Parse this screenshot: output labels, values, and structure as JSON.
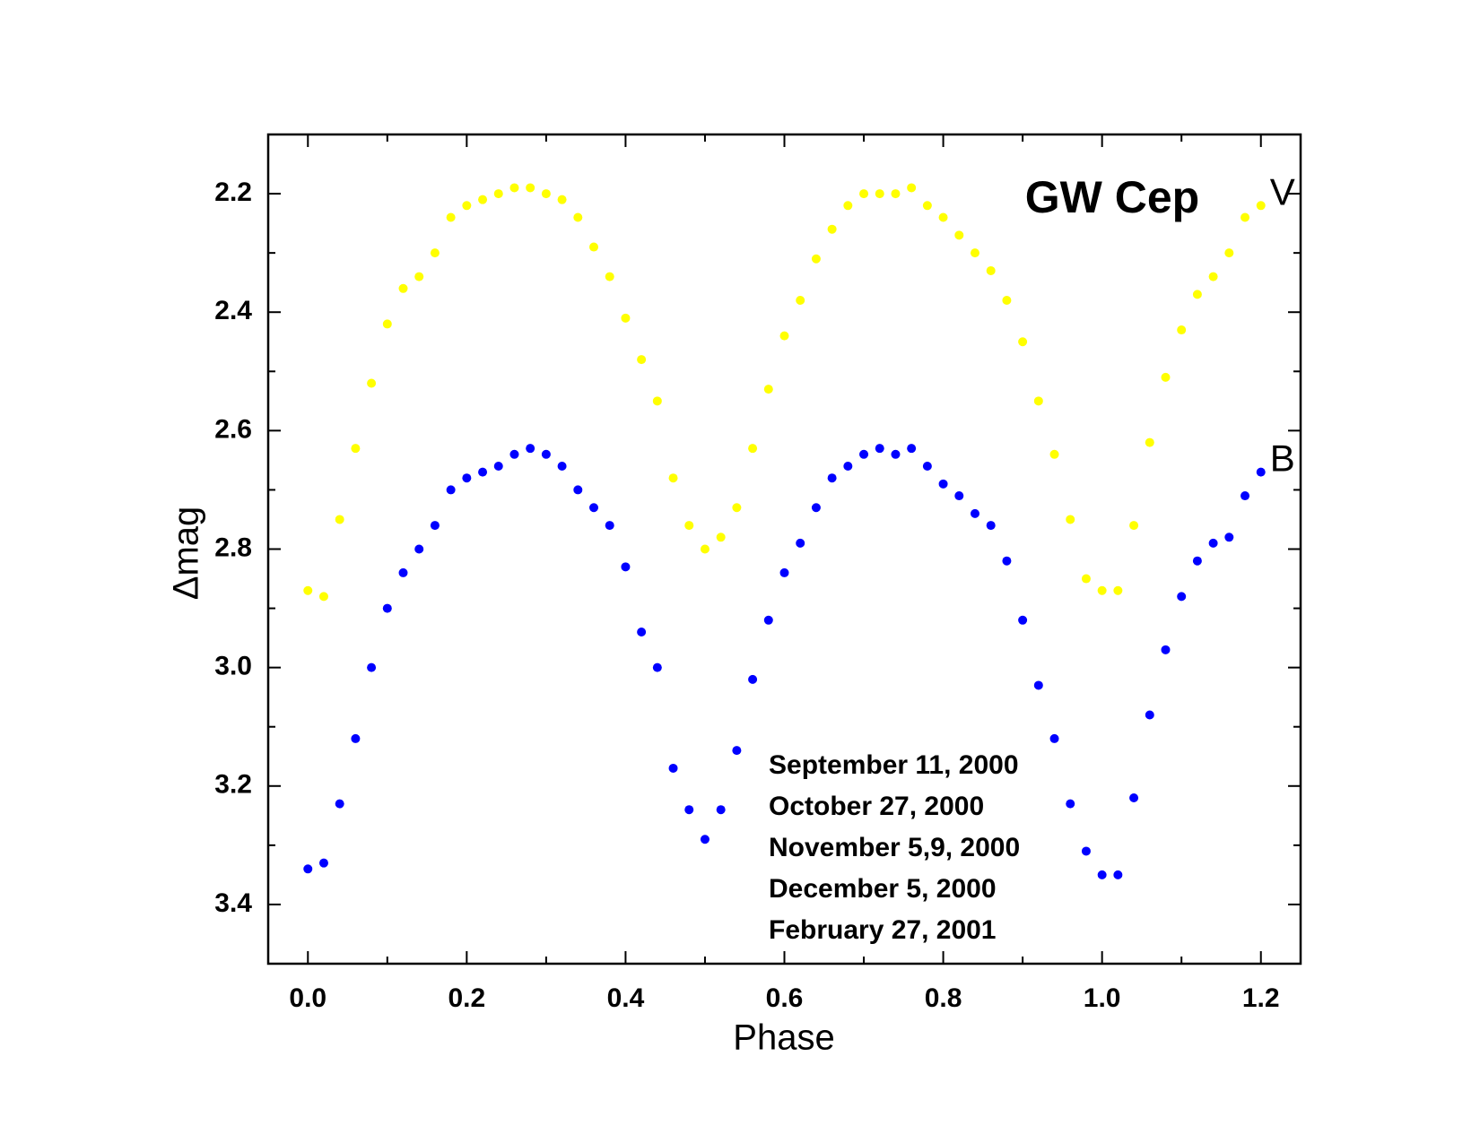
{
  "chart_data": {
    "type": "scatter",
    "title": "GW Cep",
    "x_label": "Phase",
    "y_label": "Δmag",
    "annotations": [
      "September 11, 2000",
      "October 27, 2000",
      "November 5,9, 2000",
      "December 5, 2000",
      "February 27, 2001"
    ],
    "x": [
      0,
      0.02,
      0.04,
      0.06,
      0.08,
      0.1,
      0.12,
      0.14,
      0.16,
      0.18,
      0.2,
      0.22,
      0.24,
      0.26,
      0.28,
      0.3,
      0.32,
      0.34,
      0.36,
      0.38,
      0.4,
      0.42,
      0.44,
      0.46,
      0.48,
      0.5,
      0.52,
      0.54,
      0.56,
      0.58,
      0.6,
      0.62,
      0.64,
      0.66,
      0.68,
      0.7,
      0.72,
      0.74,
      0.76,
      0.78,
      0.8,
      0.82,
      0.84,
      0.86,
      0.88,
      0.9,
      0.92,
      0.94,
      0.96,
      0.98,
      1,
      1.02,
      1.04,
      1.06,
      1.08,
      1.1,
      1.12,
      1.14,
      1.16,
      1.18,
      1.2
    ],
    "series": [
      {
        "name": "V",
        "color": "#ffff00",
        "values": [
          2.87,
          2.88,
          2.75,
          2.63,
          2.52,
          2.42,
          2.36,
          2.34,
          2.3,
          2.24,
          2.22,
          2.21,
          2.2,
          2.19,
          2.19,
          2.2,
          2.21,
          2.24,
          2.29,
          2.34,
          2.41,
          2.48,
          2.55,
          2.68,
          2.76,
          2.8,
          2.78,
          2.73,
          2.63,
          2.53,
          2.44,
          2.38,
          2.31,
          2.26,
          2.22,
          2.2,
          2.2,
          2.2,
          2.19,
          2.22,
          2.24,
          2.27,
          2.3,
          2.33,
          2.38,
          2.45,
          2.55,
          2.64,
          2.75,
          2.85,
          2.87,
          2.87,
          2.76,
          2.62,
          2.51,
          2.43,
          2.37,
          2.34,
          2.3,
          2.24,
          2.22
        ]
      },
      {
        "name": "B",
        "color": "#0000ff",
        "values": [
          3.34,
          3.33,
          3.23,
          3.12,
          3.0,
          2.9,
          2.84,
          2.8,
          2.76,
          2.7,
          2.68,
          2.67,
          2.66,
          2.64,
          2.63,
          2.64,
          2.66,
          2.7,
          2.73,
          2.76,
          2.83,
          2.94,
          3.0,
          3.17,
          3.24,
          3.29,
          3.24,
          3.14,
          3.02,
          2.92,
          2.84,
          2.79,
          2.73,
          2.68,
          2.66,
          2.64,
          2.63,
          2.64,
          2.63,
          2.66,
          2.69,
          2.71,
          2.74,
          2.76,
          2.82,
          2.92,
          3.03,
          3.12,
          3.23,
          3.31,
          3.35,
          3.35,
          3.22,
          3.08,
          2.97,
          2.88,
          2.82,
          2.79,
          2.78,
          2.71,
          2.67
        ]
      }
    ],
    "xlim": [
      -0.05,
      1.25
    ],
    "ylim": [
      3.5,
      2.1
    ],
    "xticks": [
      {
        "value": 0,
        "label": "0.0"
      },
      0.2,
      0.4,
      0.6,
      0.8,
      {
        "value": 1,
        "label": "1.0"
      },
      1.2
    ],
    "yticks": [
      2.2,
      2.4,
      2.6,
      2.8,
      {
        "value": 3,
        "label": "3.0"
      },
      3.2,
      3.4
    ],
    "xminorticks": [
      0.1,
      0.3,
      0.5,
      0.7,
      0.9,
      1.1
    ],
    "yminorticks": [
      2.3,
      2.5,
      2.7,
      2.9,
      3.1,
      3.3
    ],
    "grid": false
  }
}
